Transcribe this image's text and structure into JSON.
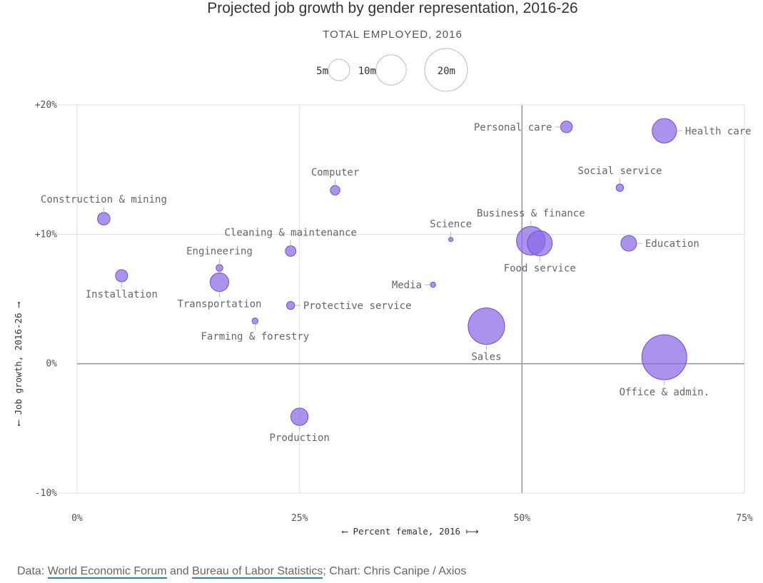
{
  "chart_data": {
    "type": "scatter",
    "title": "Projected job growth by gender representation, 2016-26",
    "size_legend": {
      "title": "TOTAL EMPLOYED, 2016",
      "items": [
        {
          "label": "5m",
          "value": 5
        },
        {
          "label": "10m",
          "value": 10
        },
        {
          "label": "20m",
          "value": 20
        }
      ]
    },
    "xlabel": "⟵ Percent female, 2016 ⟼",
    "ylabel": "⟵ Job growth, 2016-26 ⟶",
    "xlim": [
      0,
      75
    ],
    "ylim": [
      -10,
      20
    ],
    "x_ticks": [
      {
        "value": 0,
        "label": "0%"
      },
      {
        "value": 25,
        "label": "25%"
      },
      {
        "value": 50,
        "label": "50%"
      },
      {
        "value": 75,
        "label": "75%"
      }
    ],
    "y_ticks": [
      {
        "value": 20,
        "label": "+20%"
      },
      {
        "value": 10,
        "label": "+10%"
      },
      {
        "value": 0,
        "label": "0%"
      },
      {
        "value": -10,
        "label": "-10%"
      }
    ],
    "grid": true,
    "color": "#8b6ae6",
    "points": [
      {
        "label": "Personal care",
        "x": 55,
        "y": 18.3,
        "size": 1.5
      },
      {
        "label": "Health care",
        "x": 66,
        "y": 18.0,
        "size": 6.5
      },
      {
        "label": "Social service",
        "x": 61,
        "y": 13.6,
        "size": 0.6
      },
      {
        "label": "Computer",
        "x": 29,
        "y": 13.4,
        "size": 1.0
      },
      {
        "label": "Construction & mining",
        "x": 3,
        "y": 11.2,
        "size": 1.7
      },
      {
        "label": "Business & finance",
        "x": 51,
        "y": 9.5,
        "size": 9.0
      },
      {
        "label": "Food service",
        "x": 52,
        "y": 9.3,
        "size": 6.8
      },
      {
        "label": "Education",
        "x": 62,
        "y": 9.3,
        "size": 2.7
      },
      {
        "label": "Science",
        "x": 42,
        "y": 9.6,
        "size": 0.2
      },
      {
        "label": "Cleaning & maintenance",
        "x": 24,
        "y": 8.7,
        "size": 1.2
      },
      {
        "label": "Engineering",
        "x": 16,
        "y": 7.4,
        "size": 0.5
      },
      {
        "label": "Installation",
        "x": 5,
        "y": 6.8,
        "size": 1.6
      },
      {
        "label": "Transportation",
        "x": 16,
        "y": 6.3,
        "size": 3.8
      },
      {
        "label": "Media",
        "x": 40,
        "y": 6.1,
        "size": 0.3
      },
      {
        "label": "Protective service",
        "x": 24,
        "y": 4.5,
        "size": 0.7
      },
      {
        "label": "Farming & forestry",
        "x": 20,
        "y": 3.3,
        "size": 0.4
      },
      {
        "label": "Sales",
        "x": 46,
        "y": 2.9,
        "size": 14.5
      },
      {
        "label": "Office & admin.",
        "x": 66,
        "y": 0.5,
        "size": 22.0
      },
      {
        "label": "Production",
        "x": 25,
        "y": -4.1,
        "size": 3.3
      }
    ]
  },
  "source": {
    "prefix": "Data: ",
    "link1": "World Economic Forum",
    "and": " and ",
    "link2": "Bureau of Labor Statistics",
    "suffix": "; Chart: Chris Canipe / Axios"
  }
}
